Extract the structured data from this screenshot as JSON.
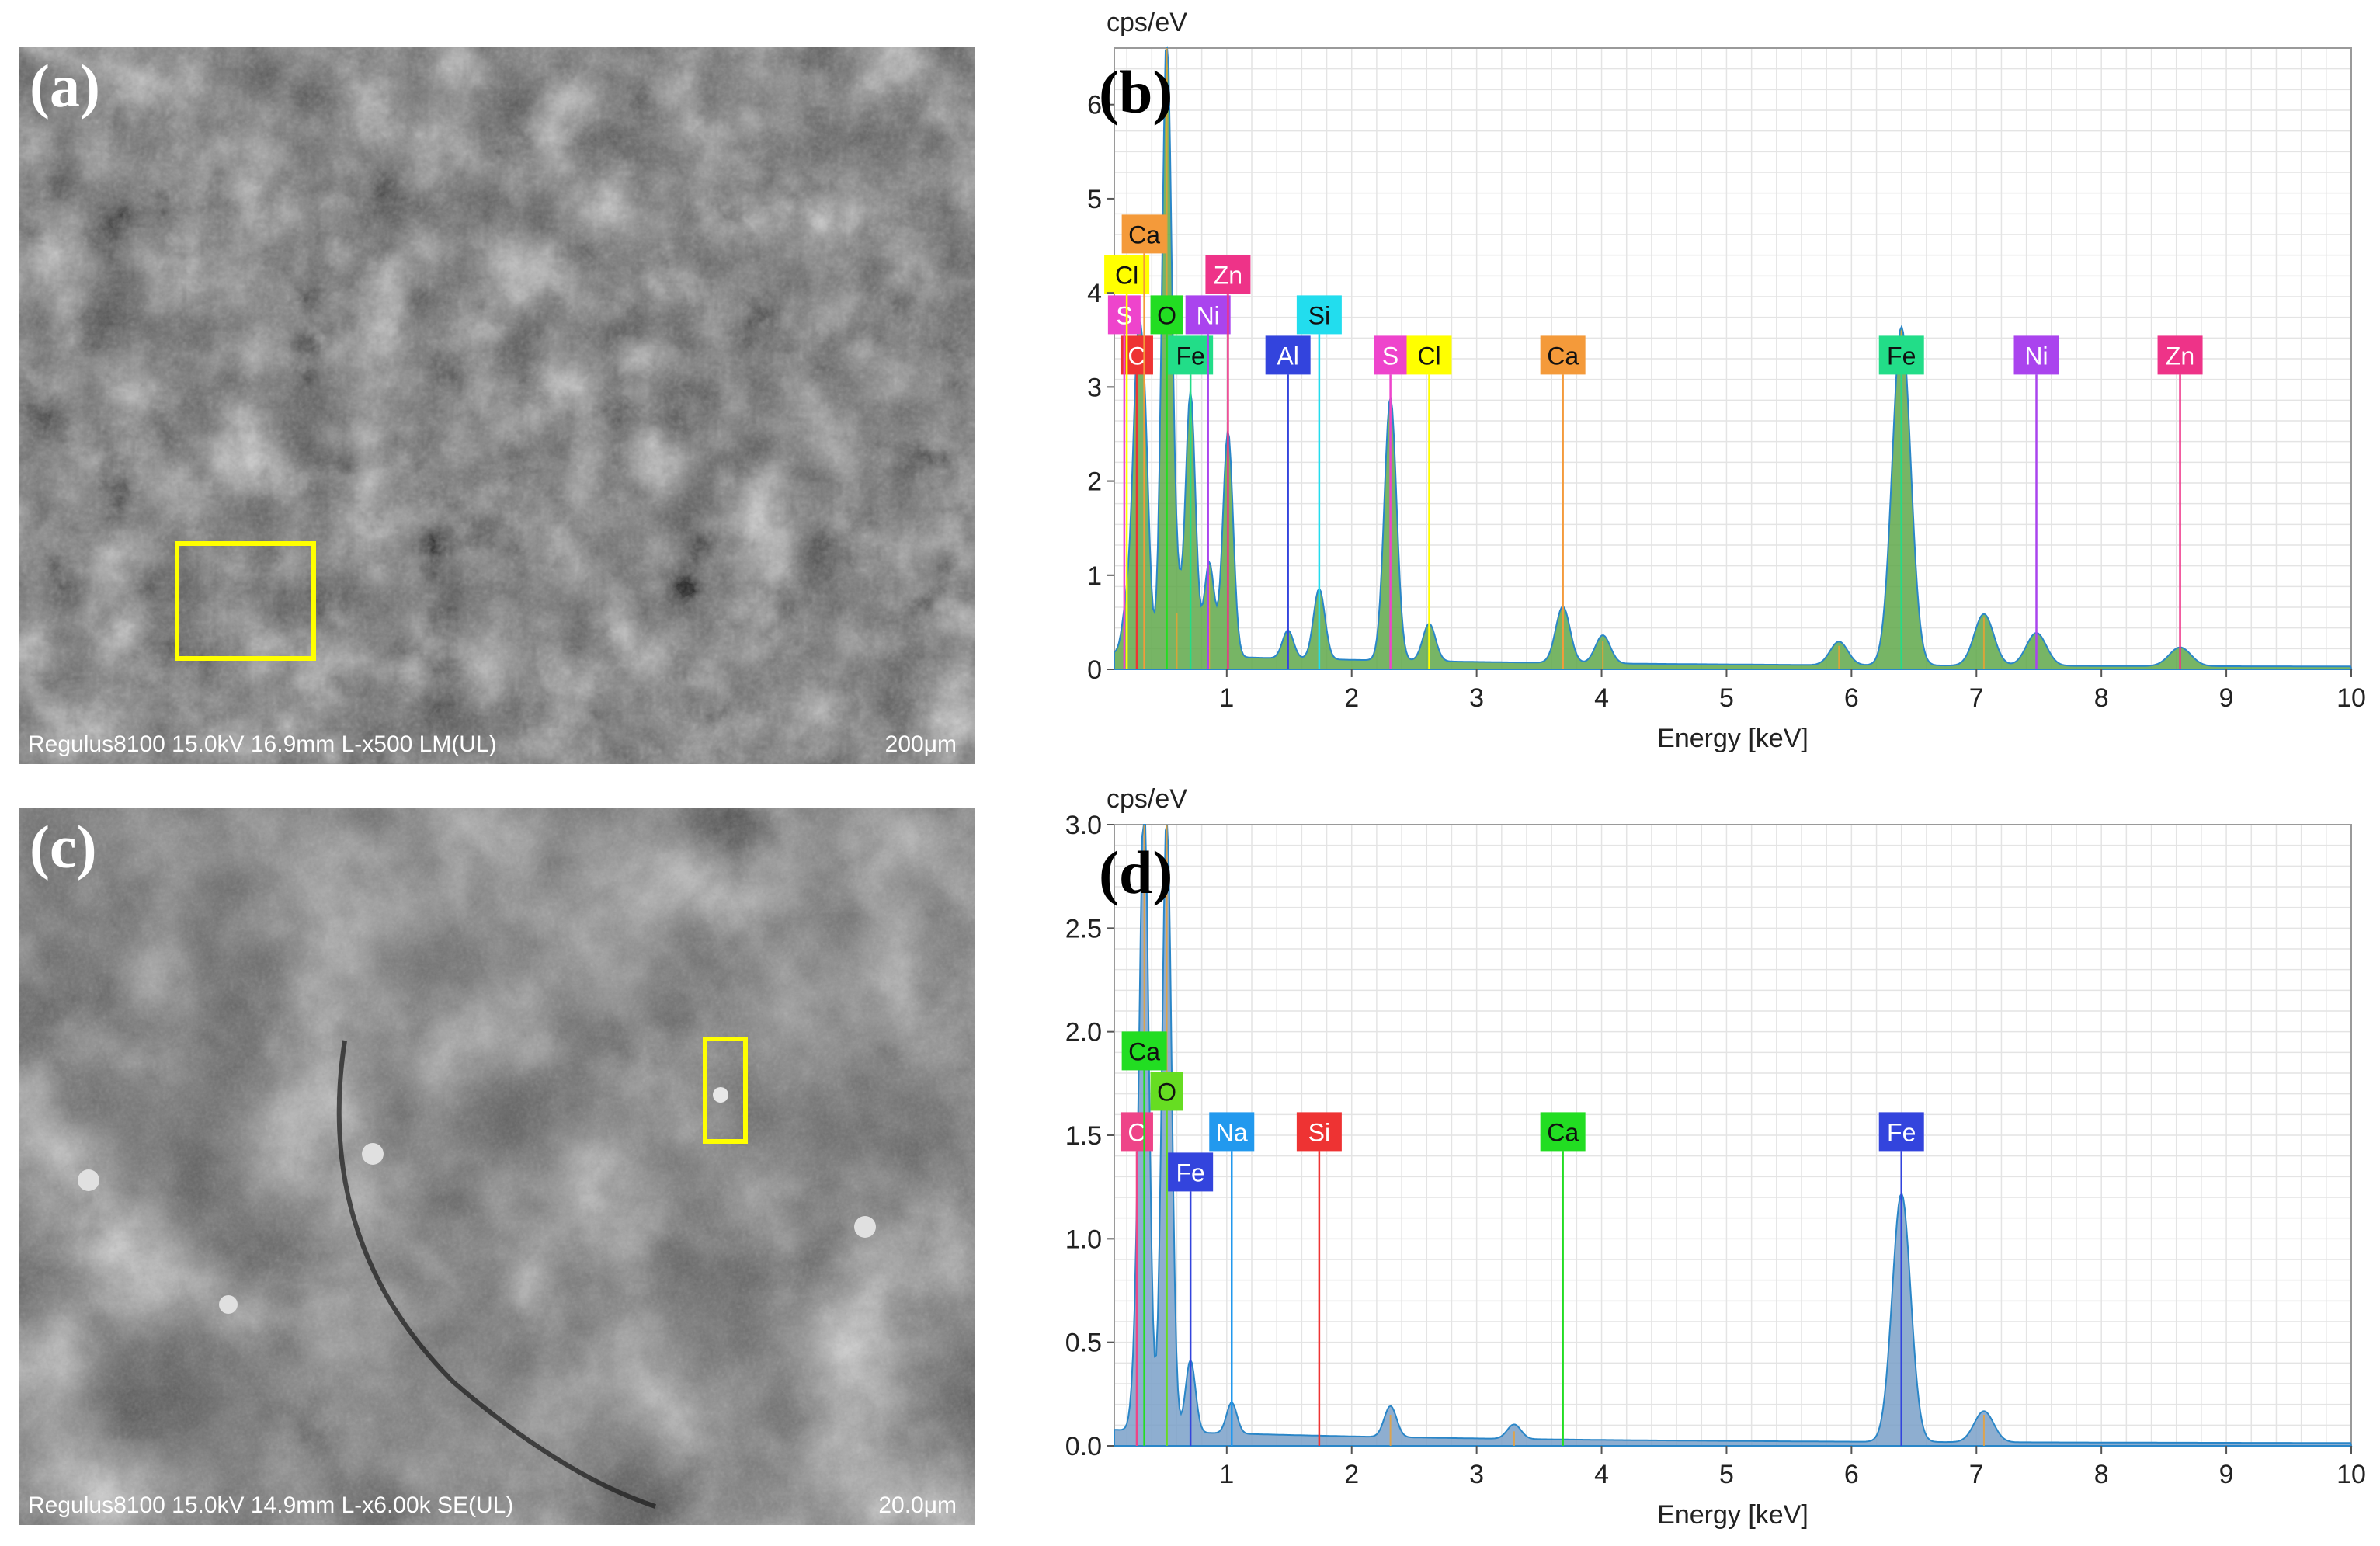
{
  "micrographs": {
    "a": {
      "letter": "(a)",
      "info": "Regulus8100 15.0kV 16.9mm L-x500 LM(UL)",
      "scale": "200μm",
      "box_color": "#ffff00"
    },
    "c": {
      "letter": "(c)",
      "info": "Regulus8100 15.0kV 14.9mm L-x6.00k SE(UL)",
      "scale": "20.0μm",
      "box_color": "#ffff00"
    }
  },
  "chart_data": [
    {
      "panel": "(b)",
      "type": "line",
      "ylabel": "cps/eV",
      "xlabel": "Energy [keV]",
      "xlim": [
        0.1,
        10
      ],
      "ylim": [
        0,
        6.6
      ],
      "xticks": [
        1,
        2,
        3,
        4,
        5,
        6,
        7,
        8,
        9,
        10
      ],
      "yticks": [
        0,
        1,
        2,
        3,
        4,
        5,
        6
      ],
      "ytick_labels": [
        "0",
        "1",
        "2",
        "3",
        "4",
        "5",
        "6"
      ],
      "grid": true,
      "colors": {
        "spectrum_fill": "#5fa84a",
        "spectrum_line": "#2a86c8",
        "spectrum_alt": "#f0a030"
      },
      "peaks": [
        {
          "x": 0.2,
          "y": 0.5
        },
        {
          "x": 0.28,
          "y": 2.6
        },
        {
          "x": 0.34,
          "y": 2.3
        },
        {
          "x": 0.52,
          "y": 6.6
        },
        {
          "x": 0.6,
          "y": 0.6
        },
        {
          "x": 0.71,
          "y": 2.8
        },
        {
          "x": 0.86,
          "y": 1.0
        },
        {
          "x": 1.01,
          "y": 2.4
        },
        {
          "x": 1.49,
          "y": 0.3
        },
        {
          "x": 1.74,
          "y": 0.75
        },
        {
          "x": 2.31,
          "y": 2.8
        },
        {
          "x": 2.62,
          "y": 0.4
        },
        {
          "x": 3.69,
          "y": 0.6
        },
        {
          "x": 4.01,
          "y": 0.3
        },
        {
          "x": 5.9,
          "y": 0.25
        },
        {
          "x": 6.4,
          "y": 3.6
        },
        {
          "x": 7.06,
          "y": 0.55
        },
        {
          "x": 7.48,
          "y": 0.35
        },
        {
          "x": 8.63,
          "y": 0.2
        }
      ],
      "element_lines": [
        {
          "label": "C",
          "x": 0.28,
          "row": 1,
          "color": "#ee3333"
        },
        {
          "label": "S",
          "x": 0.18,
          "row": 2,
          "color": "#ee44cc"
        },
        {
          "label": "Cl",
          "x": 0.2,
          "row": 3,
          "color": "#ffff00"
        },
        {
          "label": "Ca",
          "x": 0.34,
          "row": 4,
          "color": "#f49a3a"
        },
        {
          "label": "O",
          "x": 0.52,
          "row": 2,
          "color": "#22dd22"
        },
        {
          "label": "Fe",
          "x": 0.71,
          "row": 1,
          "color": "#22dd88"
        },
        {
          "label": "Ni",
          "x": 0.85,
          "row": 2,
          "color": "#aa44ee"
        },
        {
          "label": "Zn",
          "x": 1.01,
          "row": 3,
          "color": "#ee3388"
        },
        {
          "label": "Al",
          "x": 1.49,
          "row": 1,
          "color": "#3344dd"
        },
        {
          "label": "Si",
          "x": 1.74,
          "row": 2,
          "color": "#22ddee"
        },
        {
          "label": "S",
          "x": 2.31,
          "row": 1,
          "color": "#ee44cc"
        },
        {
          "label": "Cl",
          "x": 2.62,
          "row": 1,
          "color": "#ffff00"
        },
        {
          "label": "Ca",
          "x": 3.69,
          "row": 1,
          "color": "#f49a3a"
        },
        {
          "label": "Fe",
          "x": 6.4,
          "row": 1,
          "color": "#22dd88"
        },
        {
          "label": "Ni",
          "x": 7.48,
          "row": 1,
          "color": "#aa44ee"
        },
        {
          "label": "Zn",
          "x": 8.63,
          "row": 1,
          "color": "#ee3388"
        }
      ]
    },
    {
      "panel": "(d)",
      "type": "line",
      "ylabel": "cps/eV",
      "xlabel": "Energy [keV]",
      "xlim": [
        0.1,
        10
      ],
      "ylim": [
        0,
        3.0
      ],
      "xticks": [
        1,
        2,
        3,
        4,
        5,
        6,
        7,
        8,
        9,
        10
      ],
      "yticks": [
        0,
        0.5,
        1,
        1.5,
        2,
        2.5,
        3
      ],
      "ytick_labels": [
        "0.0",
        "0.5",
        "1.0",
        "1.5",
        "2.0",
        "2.5",
        "3.0"
      ],
      "grid": true,
      "colors": {
        "spectrum_fill": "#7aa0c8",
        "spectrum_line": "#2a86c8",
        "spectrum_alt": "#f0a030"
      },
      "peaks": [
        {
          "x": 0.28,
          "y": 0.3
        },
        {
          "x": 0.34,
          "y": 3.0
        },
        {
          "x": 0.52,
          "y": 3.0
        },
        {
          "x": 0.71,
          "y": 0.35
        },
        {
          "x": 1.04,
          "y": 0.15
        },
        {
          "x": 2.31,
          "y": 0.15
        },
        {
          "x": 3.3,
          "y": 0.07
        },
        {
          "x": 6.4,
          "y": 1.2
        },
        {
          "x": 7.06,
          "y": 0.15
        }
      ],
      "element_lines": [
        {
          "label": "C",
          "x": 0.28,
          "row": 1,
          "color": "#ee4488"
        },
        {
          "label": "Ca",
          "x": 0.34,
          "row": 3,
          "color": "#22dd22"
        },
        {
          "label": "O",
          "x": 0.52,
          "row": 2,
          "color": "#66dd22"
        },
        {
          "label": "Fe",
          "x": 0.71,
          "row": 0,
          "color": "#3344dd"
        },
        {
          "label": "Na",
          "x": 1.04,
          "row": 1,
          "color": "#2299ee"
        },
        {
          "label": "Si",
          "x": 1.74,
          "row": 1,
          "color": "#ee3333"
        },
        {
          "label": "Ca",
          "x": 3.69,
          "row": 1,
          "color": "#22dd22"
        },
        {
          "label": "Fe",
          "x": 6.4,
          "row": 1,
          "color": "#3344dd"
        }
      ]
    }
  ]
}
